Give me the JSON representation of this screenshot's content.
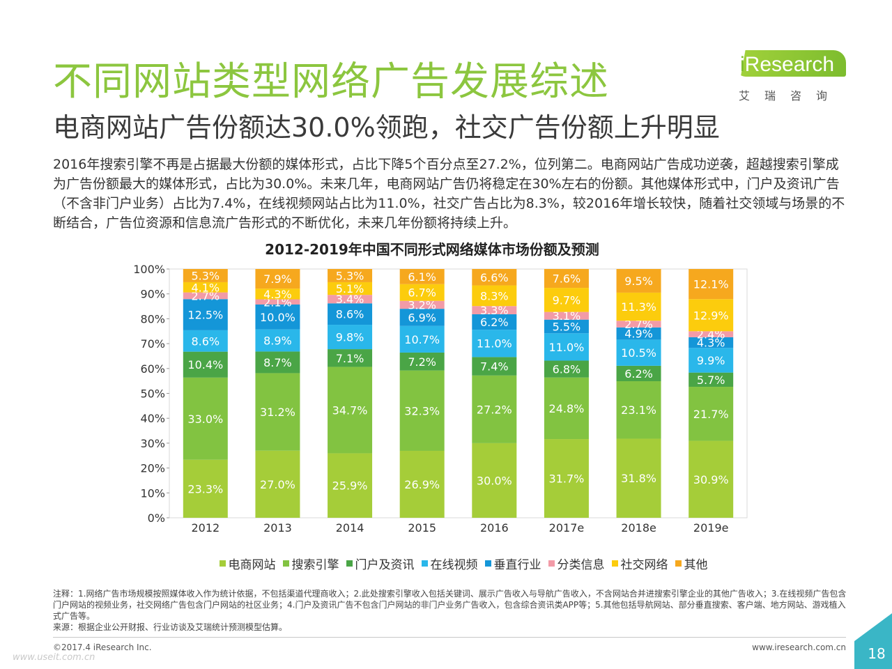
{
  "page": {
    "title": "不同网站类型网络广告发展综述",
    "subtitle": "电商网站广告份额达30.0%领跑，社交广告份额上升明显",
    "description": "2016年搜索引擎不再是占据最大份额的媒体形式，占比下降5个百分点至27.2%，位列第二。电商网站广告成功逆袭，超越搜索引擎成为广告份额最大的媒体形式，占比为30.0%。未来几年，电商网站广告仍将稳定在30%左右的份额。其他媒体形式中，门户及资讯广告（不含非门户业务）占比为7.4%，在线视频网站占比为11.0%，社交广告占比为8.3%，较2016年增长较快，随着社交领域与场景的不断结合，广告位资源和信息流广告形式的不断优化，未来几年份额将持续上升。",
    "notes": "注释：1.网络广告市场规模按照媒体收入作为统计依据，不包括渠道代理商收入；2.此处搜索引擎收入包括关键词、展示广告收入与导航广告收入，不含网站合并进搜索引擎企业的其他广告收入；3.在线视频广告包含门户网站的视频业务，社交网络广告包含门户网站的社区业务；4.门户及资讯广告不包含门户网站的非门户业务广告收入，包含综合资讯类APP等；5.其他包括导航网站、部分垂直搜索、客户端、地方网站、游戏植入式广告等。",
    "source": "来源：根据企业公开财报、行业访谈及艾瑞统计预测模型估算。",
    "copyright": "©2017.4 iResearch Inc.",
    "website": "www.iresearch.com.cn",
    "page_number": "18",
    "watermark": "www.useit.com.cn"
  },
  "logo": {
    "text_i": "i",
    "text_rest": "Research",
    "cn": "艾瑞咨询"
  },
  "colors": {
    "title": "#8cc63f",
    "accent": "#7cbc2e"
  },
  "chart_data": {
    "type": "bar",
    "stacked": true,
    "title": "2012-2019年中国不同形式网络媒体市场份额及预测",
    "categories": [
      "2012",
      "2013",
      "2014",
      "2015",
      "2016",
      "2017e",
      "2018e",
      "2019e"
    ],
    "ylim": [
      0,
      100
    ],
    "yticks": [
      "0%",
      "10%",
      "20%",
      "30%",
      "40%",
      "50%",
      "60%",
      "70%",
      "80%",
      "90%",
      "100%"
    ],
    "legend_position": "bottom",
    "series": [
      {
        "name": "电商网站",
        "color": "#a5cd39",
        "values": [
          23.3,
          27.0,
          25.9,
          26.9,
          30.0,
          31.7,
          31.8,
          30.9
        ]
      },
      {
        "name": "搜索引擎",
        "color": "#82c341",
        "values": [
          33.0,
          31.2,
          34.7,
          32.3,
          27.2,
          24.8,
          23.1,
          21.7
        ]
      },
      {
        "name": "门户及资讯",
        "color": "#4aa546",
        "values": [
          10.4,
          8.7,
          7.1,
          7.2,
          7.4,
          6.8,
          6.2,
          5.7
        ]
      },
      {
        "name": "在线视频",
        "color": "#2ab7ea",
        "values": [
          8.6,
          8.9,
          9.8,
          10.7,
          11.0,
          11.0,
          10.5,
          9.9
        ]
      },
      {
        "name": "垂直行业",
        "color": "#1496d8",
        "values": [
          12.5,
          10.0,
          8.6,
          6.9,
          6.2,
          5.5,
          4.9,
          4.3
        ]
      },
      {
        "name": "分类信息",
        "color": "#f29ba7",
        "values": [
          2.7,
          2.1,
          3.4,
          3.2,
          3.3,
          3.1,
          2.7,
          2.4
        ]
      },
      {
        "name": "社交网络",
        "color": "#fccc0d",
        "values": [
          4.1,
          4.3,
          5.1,
          6.7,
          8.3,
          9.7,
          11.3,
          12.9
        ]
      },
      {
        "name": "其他",
        "color": "#f6a81e",
        "values": [
          5.3,
          7.9,
          5.3,
          6.1,
          6.6,
          7.6,
          9.5,
          12.1
        ]
      }
    ]
  }
}
